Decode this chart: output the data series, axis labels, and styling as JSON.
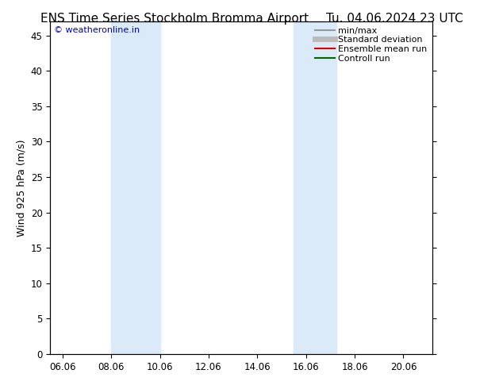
{
  "title_left": "ENS Time Series Stockholm Bromma Airport",
  "title_right": "Tu. 04.06.2024 23 UTC",
  "ylabel": "Wind 925 hPa (m/s)",
  "watermark": "© weatheronline.in",
  "watermark_color": "#0000cc",
  "background_color": "#ffffff",
  "plot_bg_color": "#ffffff",
  "shaded_regions": [
    {
      "xstart": 8.0,
      "xend": 10.0,
      "color": "#daeaf8"
    },
    {
      "xstart": 15.5,
      "xend": 17.25,
      "color": "#daeaf8"
    }
  ],
  "xmin": 5.5,
  "xmax": 21.2,
  "ymin": 0,
  "ymax": 47,
  "yticks": [
    0,
    5,
    10,
    15,
    20,
    25,
    30,
    35,
    40,
    45
  ],
  "xtick_labels": [
    "06.06",
    "08.06",
    "10.06",
    "12.06",
    "14.06",
    "16.06",
    "18.06",
    "20.06"
  ],
  "xtick_positions": [
    6.0,
    8.0,
    10.0,
    12.0,
    14.0,
    16.0,
    18.0,
    20.0
  ],
  "legend_items": [
    {
      "label": "min/max",
      "color": "#999999",
      "lw": 1.5,
      "style": "solid"
    },
    {
      "label": "Standard deviation",
      "color": "#bbbbbb",
      "lw": 5,
      "style": "solid"
    },
    {
      "label": "Ensemble mean run",
      "color": "#dd0000",
      "lw": 1.5,
      "style": "solid"
    },
    {
      "label": "Controll run",
      "color": "#006600",
      "lw": 1.5,
      "style": "solid"
    }
  ],
  "title_fontsize": 11,
  "axis_fontsize": 9,
  "tick_fontsize": 8.5,
  "legend_fontsize": 8
}
